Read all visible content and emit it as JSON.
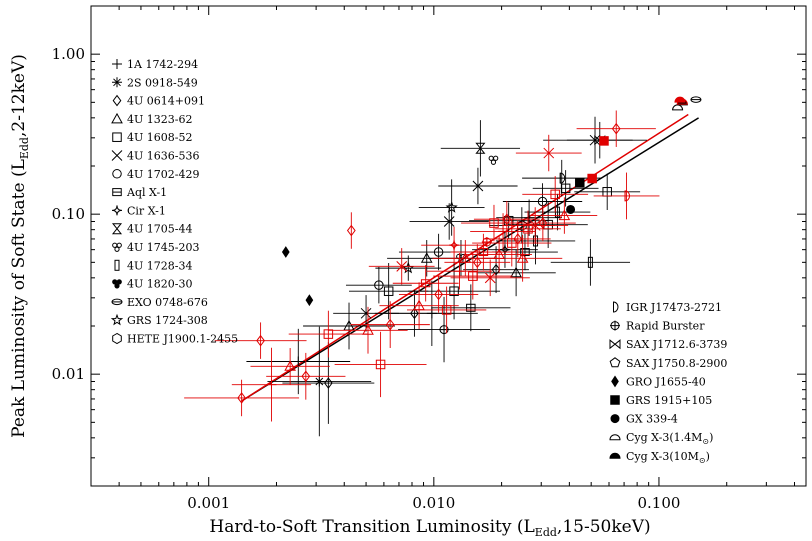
{
  "chart_data": {
    "type": "scatter",
    "xlabel": {
      "main": "Hard-to-Soft Transition Luminosity (L",
      "sub": "Edd",
      "tail": ",15-50keV)"
    },
    "ylabel": {
      "main": "Peak Luminosity of Soft State (L",
      "sub": "Edd",
      "tail": ",2-12keV)"
    },
    "x_scale": "log",
    "y_scale": "log",
    "xlim": [
      0.0003,
      0.45
    ],
    "ylim": [
      0.002,
      2.0
    ],
    "x_ticks": [
      {
        "value": 0.001,
        "label": "0.001"
      },
      {
        "value": 0.01,
        "label": "0.010"
      },
      {
        "value": 0.1,
        "label": "0.100"
      }
    ],
    "y_ticks": [
      {
        "value": 0.01,
        "label": "0.01"
      },
      {
        "value": 0.1,
        "label": "0.10"
      },
      {
        "value": 1.0,
        "label": "1.00"
      }
    ],
    "colors": {
      "black": "#000000",
      "red": "#e00000"
    },
    "legend_left": [
      "1A 1742-294",
      "2S 0918-549",
      "4U 0614+091",
      "4U 1323-62",
      "4U 1608-52",
      "4U 1636-536",
      "4U 1702-429",
      "Aql X-1",
      "Cir X-1",
      "4U 1705-44",
      "4U 1745-203",
      "4U 1728-34",
      "4U 1820-30",
      "EXO 0748-676",
      "GRS 1724-308",
      "HETE J1900.1-2455"
    ],
    "legend_left_icons": [
      "plus",
      "asterisk",
      "diamond",
      "triangle",
      "square",
      "cross",
      "circle",
      "square-bar",
      "star4",
      "hourglass",
      "trefoil",
      "rect-tall",
      "trefoil-filled",
      "ellipse-bar",
      "star5",
      "hexagon"
    ],
    "legend_right": [
      "IGR J17473-2721",
      "Rapid Burster",
      "SAX J1712.6-3739",
      "SAX J1750.8-2900",
      "GRO J1655-40",
      "GRS 1915+105",
      "GX 339-4",
      "Cyg X-3(1.4M",
      "Cyg X-3(10M"
    ],
    "legend_right_suffix": [
      "",
      "",
      "",
      "",
      "",
      "",
      "",
      ")",
      ")"
    ],
    "legend_right_sun": [
      false,
      false,
      false,
      false,
      false,
      false,
      false,
      true,
      true
    ],
    "legend_right_icons": [
      "half-circle",
      "circle-plus",
      "bowtie",
      "pentagon",
      "diamond-filled",
      "square-filled",
      "circle-filled",
      "dome",
      "dome-filled"
    ],
    "fit_lines": [
      {
        "color": "black",
        "x": [
          0.0014,
          0.15
        ],
        "y": [
          0.0068,
          0.4
        ]
      },
      {
        "color": "red",
        "x": [
          0.0014,
          0.135
        ],
        "y": [
          0.0068,
          0.42
        ]
      }
    ],
    "series": [
      {
        "color": "black",
        "points": [
          [
            0.0022,
            0.058,
            0,
            0,
            "diamond-filled"
          ],
          [
            0.0028,
            0.029,
            0,
            0,
            "diamond-filled"
          ],
          [
            0.0025,
            0.012,
            0.7,
            1.6,
            "plus"
          ],
          [
            0.0031,
            0.009,
            0.7,
            2.2,
            "asterisk"
          ],
          [
            0.0034,
            0.0088,
            0.6,
            1.8,
            "diamond"
          ],
          [
            0.0042,
            0.02,
            0.6,
            1.4,
            "triangle"
          ],
          [
            0.005,
            0.024,
            0.4,
            1.3,
            "cross"
          ],
          [
            0.0057,
            0.036,
            0.4,
            1.3,
            "circle"
          ],
          [
            0.0063,
            0.033,
            0.5,
            1.5,
            "square"
          ],
          [
            0.0077,
            0.046,
            0.4,
            1.2,
            "star5"
          ],
          [
            0.0082,
            0.024,
            0.5,
            1.4,
            "diamond"
          ],
          [
            0.0093,
            0.053,
            0.5,
            1.3,
            "triangle"
          ],
          [
            0.0098,
            0.024,
            0.6,
            1.6,
            "plus"
          ],
          [
            0.0105,
            0.058,
            0.5,
            1.3,
            "circle"
          ],
          [
            0.0111,
            0.019,
            0.6,
            1.6,
            "circle-plus"
          ],
          [
            0.0117,
            0.09,
            0.5,
            1.3,
            "cross"
          ],
          [
            0.012,
            0.11,
            0.4,
            1.5,
            "star5"
          ],
          [
            0.0123,
            0.033,
            0.6,
            1.5,
            "square"
          ],
          [
            0.0132,
            0.053,
            0.4,
            1.3,
            "trefoil"
          ],
          [
            0.0146,
            0.026,
            0.5,
            1.4,
            "square-bar"
          ],
          [
            0.0157,
            0.15,
            0.5,
            1.3,
            "cross"
          ],
          [
            0.0161,
            0.258,
            0.5,
            1.5,
            "hourglass"
          ],
          [
            0.0184,
            0.218,
            0,
            0,
            "trefoil"
          ],
          [
            0.0189,
            0.045,
            0.4,
            1.4,
            "diamond"
          ],
          [
            0.0207,
            0.06,
            0.4,
            1.3,
            "star4"
          ],
          [
            0.0215,
            0.091,
            0.5,
            1.3,
            "square"
          ],
          [
            0.0232,
            0.043,
            0.5,
            1.4,
            "triangle"
          ],
          [
            0.0246,
            0.085,
            0.4,
            1.3,
            "hexagon"
          ],
          [
            0.0254,
            0.058,
            0.4,
            1.3,
            "square-bar"
          ],
          [
            0.0265,
            0.095,
            0.4,
            1.3,
            "plus"
          ],
          [
            0.0283,
            0.068,
            0.5,
            1.4,
            "rect-tall"
          ],
          [
            0.0304,
            0.12,
            0.5,
            1.3,
            "circle"
          ],
          [
            0.0322,
            0.086,
            0.5,
            1.4,
            "square"
          ],
          [
            0.0354,
            0.103,
            0.4,
            1.3,
            "rect-tall"
          ],
          [
            0.037,
            0.168,
            0.5,
            1.3,
            "half-circle"
          ],
          [
            0.0385,
            0.145,
            0.4,
            1.3,
            "square"
          ],
          [
            0.0405,
            0.107,
            0,
            0,
            "circle-filled"
          ],
          [
            0.0445,
            0.157,
            0,
            0,
            "square-filled"
          ],
          [
            0.0496,
            0.05,
            0.5,
            1.4,
            "rect-tall"
          ],
          [
            0.0546,
            0.29,
            0.4,
            1.3,
            "bowtie"
          ],
          [
            0.0589,
            0.138,
            0.4,
            1.3,
            "square"
          ],
          [
            0.052,
            0.29,
            0.7,
            1.4,
            "cross"
          ],
          [
            0.121,
            0.465,
            0,
            0,
            "dome"
          ],
          [
            0.127,
            0.5,
            0,
            0,
            "dome-filled"
          ],
          [
            0.146,
            0.52,
            0,
            0,
            "ellipse-bar"
          ]
        ]
      },
      {
        "color": "red",
        "points": [
          [
            0.0014,
            0.0071,
            0.8,
            1.3,
            "diamond"
          ],
          [
            0.0017,
            0.0162,
            0.6,
            1.3,
            "diamond"
          ],
          [
            0.0019,
            0.0086,
            0.5,
            1.7,
            "plus"
          ],
          [
            0.0023,
            0.0112,
            0.5,
            1.3,
            "triangle"
          ],
          [
            0.0027,
            0.0097,
            0.5,
            1.4,
            "diamond"
          ],
          [
            0.0034,
            0.0178,
            0.5,
            1.4,
            "square"
          ],
          [
            0.0043,
            0.079,
            0,
            1.3,
            "diamond"
          ],
          [
            0.0051,
            0.0188,
            0.5,
            1.4,
            "triangle"
          ],
          [
            0.0058,
            0.0115,
            0.6,
            1.6,
            "square"
          ],
          [
            0.0064,
            0.0204,
            0.5,
            1.4,
            "diamond"
          ],
          [
            0.0072,
            0.0472,
            0.4,
            1.3,
            "cross"
          ],
          [
            0.0086,
            0.0268,
            0.5,
            1.4,
            "triangle"
          ],
          [
            0.0092,
            0.037,
            0.4,
            1.3,
            "square-bar"
          ],
          [
            0.0105,
            0.0315,
            0.5,
            1.3,
            "diamond"
          ],
          [
            0.0114,
            0.0252,
            0.5,
            1.4,
            "square"
          ],
          [
            0.0123,
            0.064,
            0.4,
            1.3,
            "star4"
          ],
          [
            0.013,
            0.044,
            0.4,
            1.3,
            "plus"
          ],
          [
            0.0138,
            0.053,
            0.4,
            1.3,
            "triangle"
          ],
          [
            0.0149,
            0.041,
            0.5,
            1.4,
            "square"
          ],
          [
            0.0156,
            0.05,
            0.4,
            1.3,
            "diamond"
          ],
          [
            0.0166,
            0.058,
            0.4,
            1.3,
            "square-bar"
          ],
          [
            0.0172,
            0.067,
            0,
            0,
            "circle-plus"
          ],
          [
            0.0178,
            0.04,
            0.5,
            1.3,
            "cross"
          ],
          [
            0.0185,
            0.088,
            0.4,
            1.3,
            "square"
          ],
          [
            0.0195,
            0.056,
            0.4,
            1.3,
            "triangle"
          ],
          [
            0.0203,
            0.078,
            0.4,
            1.3,
            "plus"
          ],
          [
            0.0211,
            0.093,
            0.4,
            1.3,
            "diamond"
          ],
          [
            0.0222,
            0.066,
            0.5,
            1.4,
            "square"
          ],
          [
            0.0236,
            0.07,
            0.4,
            1.3,
            "diamond"
          ],
          [
            0.0248,
            0.053,
            0.5,
            1.4,
            "triangle"
          ],
          [
            0.0262,
            0.081,
            0.4,
            1.3,
            "square"
          ],
          [
            0.0282,
            0.085,
            0.4,
            1.3,
            "cross"
          ],
          [
            0.0305,
            0.088,
            0.4,
            1.3,
            "diamond"
          ],
          [
            0.0324,
            0.241,
            0.4,
            1.3,
            "cross"
          ],
          [
            0.0346,
            0.133,
            0.4,
            1.3,
            "square"
          ],
          [
            0.038,
            0.098,
            0.4,
            1.3,
            "triangle"
          ],
          [
            0.0505,
            0.167,
            0,
            0,
            "square-filled"
          ],
          [
            0.057,
            0.287,
            0,
            0,
            "square-filled"
          ],
          [
            0.0646,
            0.342,
            0.5,
            1.3,
            "diamond"
          ],
          [
            0.0718,
            0.13,
            0.4,
            1.4,
            "half-circle"
          ],
          [
            0.124,
            0.52,
            0,
            0,
            "dome-filled"
          ],
          [
            0.127,
            0.505,
            0,
            0,
            "dome"
          ]
        ]
      }
    ]
  }
}
